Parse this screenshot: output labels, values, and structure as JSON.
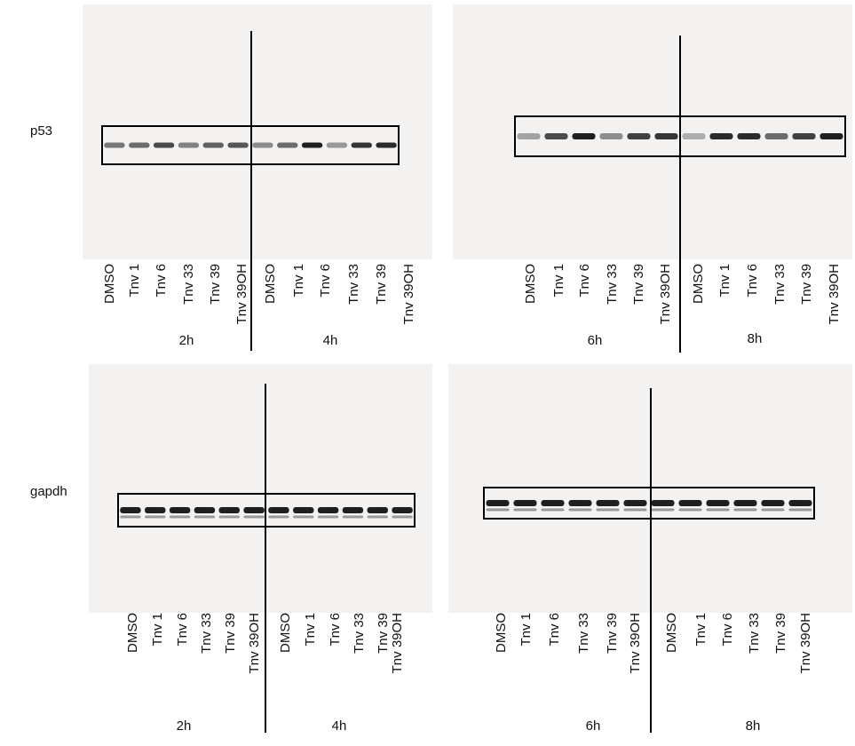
{
  "rows": [
    {
      "label": "p53",
      "panels": [
        {
          "lanes": [
            "DMSO",
            "Tnv 1",
            "Tnv 6",
            "Tnv 33",
            "Tnv 39",
            "Tnv 39OH",
            "DMSO",
            "Tnv 1",
            "Tnv 6",
            "Tnv 33",
            "Tnv 39",
            "Tnv 39OH"
          ],
          "groups": [
            "2h",
            "4h"
          ]
        },
        {
          "lanes": [
            "DMSO",
            "Tnv 1",
            "Tnv 6",
            "Tnv 33",
            "Tnv 39",
            "Tnv 39OH",
            "DMSO",
            "Tnv 1",
            "Tnv 6",
            "Tnv 33",
            "Tnv 39",
            "Tnv 39OH"
          ],
          "groups": [
            "6h",
            "8h"
          ]
        }
      ]
    },
    {
      "label": "gapdh",
      "panels": [
        {
          "lanes": [
            "DMSO",
            "Tnv 1",
            "Tnv 6",
            "Tnv 33",
            "Tnv 39",
            "Tnv 39OH",
            "DMSO",
            "Tnv 1",
            "Tnv 6",
            "Tnv 33",
            "Tnv 39",
            "Tnv 39OH"
          ],
          "groups": [
            "2h",
            "4h"
          ]
        },
        {
          "lanes": [
            "DMSO",
            "Tnv 1",
            "Tnv 6",
            "Tnv 33",
            "Tnv 39",
            "Tnv 39OH",
            "DMSO",
            "Tnv 1",
            "Tnv 6",
            "Tnv 33",
            "Tnv 39",
            "Tnv 39OH"
          ],
          "groups": [
            "6h",
            "8h"
          ]
        }
      ]
    }
  ]
}
